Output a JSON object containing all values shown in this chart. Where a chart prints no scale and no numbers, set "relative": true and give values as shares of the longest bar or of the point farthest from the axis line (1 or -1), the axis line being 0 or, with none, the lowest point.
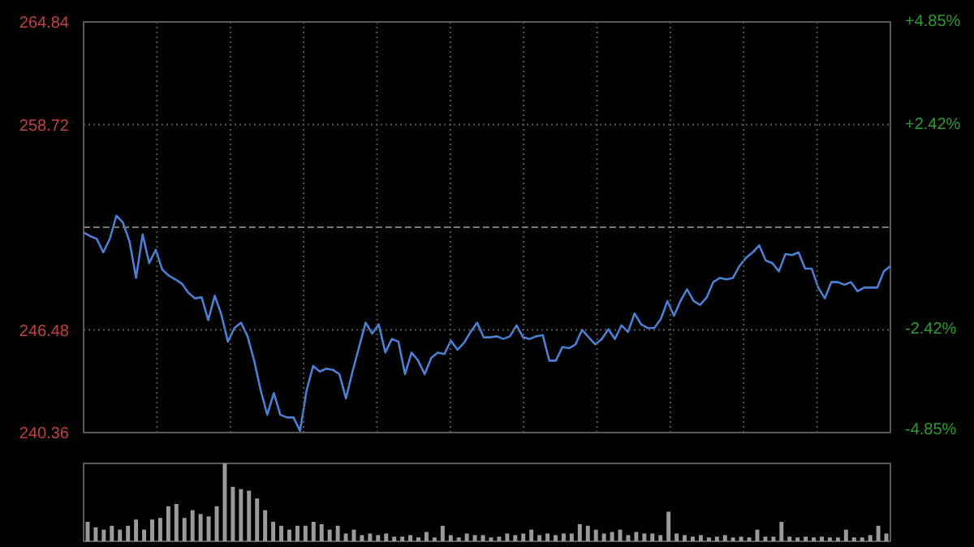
{
  "chart_data": [
    {
      "type": "line",
      "color": "#4a7fd4",
      "categories": [
        null,
        null,
        null,
        null,
        null,
        null,
        null,
        null,
        null,
        null,
        null,
        null,
        null,
        null,
        null,
        null,
        null,
        null,
        null,
        null,
        null,
        null,
        null,
        null,
        null,
        null,
        null,
        null,
        null,
        null,
        null,
        null,
        null,
        null,
        null,
        null,
        null,
        null,
        null,
        null,
        null,
        null,
        null,
        null,
        null,
        null,
        null,
        null,
        null,
        null,
        null,
        null,
        null,
        null,
        null,
        null,
        null,
        null,
        null,
        null,
        null,
        null,
        null,
        null,
        null,
        null,
        null,
        null,
        null,
        null,
        null,
        null,
        null,
        null,
        null,
        null,
        null,
        null,
        null,
        null,
        null,
        null,
        null,
        null,
        null,
        null,
        null,
        null,
        null,
        null,
        null,
        null,
        null,
        null,
        null,
        null,
        null,
        null,
        null,
        null,
        null,
        null,
        null,
        null,
        null,
        null,
        null,
        null,
        null,
        null,
        null,
        null,
        null,
        null,
        null,
        null,
        null,
        null,
        null,
        null,
        null,
        null,
        null,
        null
      ],
      "ylim": [
        240.36,
        264.84
      ],
      "yticks": [
        240.36,
        246.48,
        258.72,
        264.84
      ],
      "y2lim": [
        -4.85,
        4.85
      ],
      "y2ticks": [
        {
          "value": -4.85,
          "label": "-4.85%"
        },
        {
          "value": -2.42,
          "label": "-2.42%"
        },
        {
          "value": 2.42,
          "label": "+2.42%"
        },
        {
          "value": 4.85,
          "label": "+4.85%"
        }
      ],
      "tick_labels": "y",
      "grid": true,
      "ref_lines": [
        {
          "axis": "y",
          "value": 252.6,
          "line_style": "dashed"
        }
      ],
      "values": [
        252.29,
        252.07,
        251.91,
        251.1,
        251.91,
        253.29,
        252.87,
        251.75,
        249.58,
        252.17,
        250.46,
        251.26,
        250.07,
        249.71,
        249.49,
        249.23,
        248.68,
        248.36,
        248.42,
        247.07,
        248.52,
        247.39,
        245.78,
        246.59,
        246.91,
        246.1,
        244.65,
        242.88,
        241.42,
        242.71,
        241.42,
        241.26,
        241.26,
        240.46,
        242.88,
        244.33,
        244.0,
        244.17,
        244.1,
        243.84,
        242.39,
        244.0,
        245.46,
        246.91,
        246.26,
        246.81,
        245.13,
        245.94,
        245.78,
        243.84,
        245.13,
        244.65,
        243.84,
        244.81,
        245.13,
        245.04,
        245.84,
        245.3,
        245.71,
        246.36,
        246.91,
        246.04,
        246.04,
        246.1,
        245.94,
        246.1,
        246.75,
        246.04,
        245.94,
        246.1,
        246.17,
        244.65,
        244.65,
        245.46,
        245.39,
        245.62,
        246.49,
        246.04,
        245.62,
        245.94,
        246.52,
        245.94,
        246.75,
        246.36,
        247.46,
        246.81,
        246.59,
        246.59,
        247.13,
        248.2,
        247.33,
        248.2,
        248.91,
        248.2,
        247.97,
        248.42,
        249.33,
        249.58,
        249.49,
        249.58,
        250.29,
        250.78,
        251.1,
        251.52,
        250.62,
        250.46,
        249.97,
        251.0,
        250.94,
        251.1,
        250.13,
        250.13,
        249.0,
        248.36,
        249.33,
        249.33,
        249.17,
        249.33,
        248.78,
        249.0,
        249.0,
        249.0,
        249.97,
        250.29
      ]
    },
    {
      "type": "bar",
      "relative": true,
      "color": "#9a9a9a",
      "categories": [
        null,
        null,
        null,
        null,
        null,
        null,
        null,
        null,
        null,
        null,
        null,
        null,
        null,
        null,
        null,
        null,
        null,
        null,
        null,
        null,
        null,
        null,
        null,
        null,
        null,
        null,
        null,
        null,
        null,
        null,
        null,
        null,
        null,
        null,
        null,
        null,
        null,
        null,
        null,
        null,
        null,
        null,
        null,
        null,
        null,
        null,
        null,
        null,
        null,
        null,
        null,
        null,
        null,
        null,
        null,
        null,
        null,
        null,
        null,
        null,
        null,
        null,
        null,
        null,
        null,
        null,
        null,
        null,
        null,
        null,
        null,
        null,
        null,
        null,
        null,
        null,
        null,
        null,
        null,
        null,
        null,
        null,
        null,
        null,
        null,
        null,
        null,
        null,
        null,
        null,
        null,
        null,
        null,
        null,
        null,
        null,
        null,
        null,
        null,
        null
      ],
      "values": [
        0.25,
        0.18,
        0.15,
        0.2,
        0.15,
        0.2,
        0.28,
        0.15,
        0.28,
        0.3,
        0.45,
        0.48,
        0.3,
        0.4,
        0.35,
        0.32,
        0.45,
        1.0,
        0.7,
        0.67,
        0.65,
        0.55,
        0.4,
        0.25,
        0.2,
        0.15,
        0.2,
        0.2,
        0.25,
        0.22,
        0.15,
        0.2,
        0.1,
        0.15,
        0.08,
        0.1,
        0.08,
        0.1,
        0.06,
        0.06,
        0.08,
        0.05,
        0.12,
        0.05,
        0.2,
        0.08,
        0.05,
        0.1,
        0.08,
        0.08,
        0.05,
        0.06,
        0.1,
        0.08,
        0.1,
        0.15,
        0.08,
        0.1,
        0.08,
        0.1,
        0.1,
        0.22,
        0.2,
        0.15,
        0.1,
        0.12,
        0.15,
        0.08,
        0.12,
        0.1,
        0.1,
        0.08,
        0.38,
        0.1,
        0.08,
        0.06,
        0.08,
        0.05,
        0.06,
        0.08,
        0.05,
        0.06,
        0.05,
        0.15,
        0.06,
        0.06,
        0.25,
        0.06,
        0.05,
        0.06,
        0.05,
        0.06,
        0.05,
        0.05,
        0.15,
        0.05,
        0.05,
        0.08,
        0.2,
        0.1
      ]
    }
  ]
}
